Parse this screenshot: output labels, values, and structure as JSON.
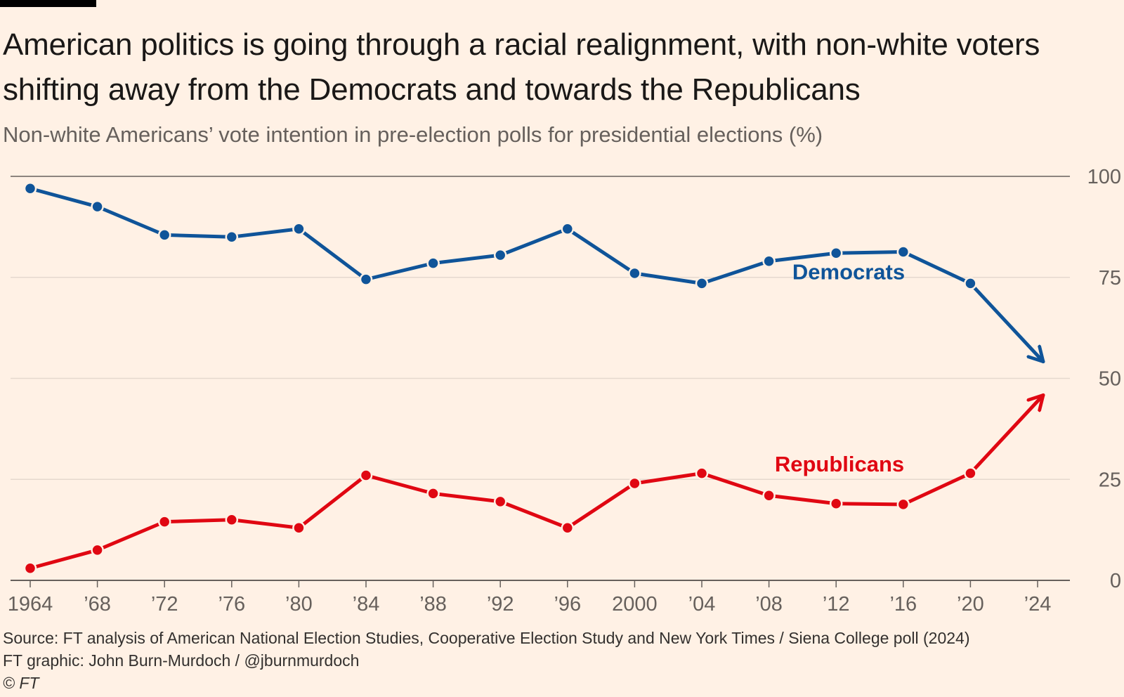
{
  "header": {
    "title": "American politics is going through a racial realignment, with non-white voters shifting away from the Democrats and towards the Republicans",
    "subtitle": "Non-white Americans’ vote intention in pre-election polls for presidential elections (%)"
  },
  "footer": {
    "source": "Source: FT analysis of American National Election Studies, Cooperative Election Study and New York Times / Siena College poll (2024)",
    "credit": "FT graphic: John Burn-Murdoch / @jburnmurdoch",
    "copyright": "© FT"
  },
  "chart_data": {
    "type": "line",
    "title": "American politics is going through a racial realignment, with non-white voters shifting away from the Democrats and towards the Republicans",
    "subtitle": "Non-white Americans’ vote intention in pre-election polls for presidential elections (%)",
    "xlabel": "",
    "ylabel": "",
    "x": [
      1964,
      1968,
      1972,
      1976,
      1980,
      1984,
      1988,
      1992,
      1996,
      2000,
      2004,
      2008,
      2012,
      2016,
      2020,
      2024
    ],
    "x_tick_labels": [
      "1964",
      "’68",
      "’72",
      "’76",
      "’80",
      "’84",
      "’88",
      "’92",
      "’96",
      "2000",
      "’04",
      "’08",
      "’12",
      "’16",
      "’20",
      "’24"
    ],
    "ylim": [
      0,
      100
    ],
    "y_ticks": [
      0,
      25,
      50,
      75,
      100
    ],
    "y_axis_side": "right",
    "grid": true,
    "legend": "inline labels",
    "series": [
      {
        "name": "Democrats",
        "color": "#0f5499",
        "marker": "dot",
        "end": "arrow",
        "values": [
          97,
          92.5,
          85.5,
          85,
          87,
          74.5,
          78.5,
          80.5,
          87,
          76,
          73.5,
          79,
          81,
          81.3,
          73.5,
          54.5
        ]
      },
      {
        "name": "Republicans",
        "color": "#e00712",
        "marker": "dot",
        "end": "arrow",
        "values": [
          3,
          7.5,
          14.5,
          15,
          13,
          26,
          21.5,
          19.5,
          13,
          24,
          26.5,
          21,
          19,
          18.8,
          26.5,
          45.5
        ]
      }
    ]
  }
}
